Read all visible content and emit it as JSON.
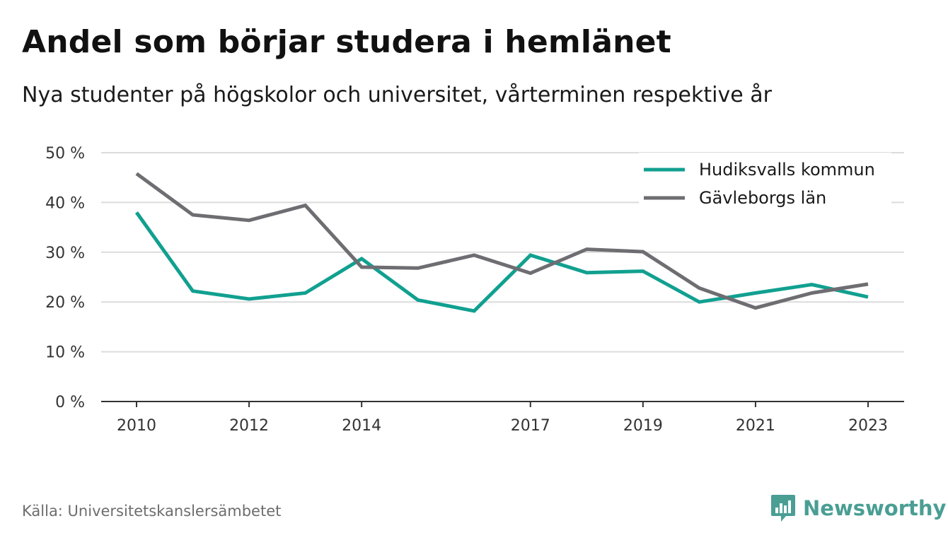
{
  "title": "Andel som börjar studera i hemlänet",
  "subtitle": "Nya studenter på högskolor och universitet, vårterminen respektive år",
  "source": "Källa: Universitetskanslersämbetet",
  "brand": {
    "name": "Newsworthy",
    "icon": "newsworthy-logo-icon",
    "color": "#4a9e94"
  },
  "chart_data": {
    "type": "line",
    "x": [
      2010,
      2011,
      2012,
      2013,
      2014,
      2015,
      2016,
      2017,
      2018,
      2019,
      2020,
      2021,
      2022,
      2023
    ],
    "series": [
      {
        "name": "Hudiksvalls kommun",
        "color": "#11a090",
        "values": [
          38,
          22.2,
          20.6,
          21.8,
          28.7,
          20.4,
          18.2,
          29.4,
          25.9,
          26.2,
          20.0,
          21.8,
          23.5,
          21.0
        ]
      },
      {
        "name": "Gävleborgs län",
        "color": "#6e6d72",
        "values": [
          45.8,
          37.5,
          36.4,
          39.4,
          27.0,
          26.8,
          29.4,
          25.8,
          30.6,
          30.1,
          22.8,
          18.8,
          21.8,
          23.6
        ]
      }
    ],
    "xticks": [
      "2010",
      "2012",
      "2014",
      "2017",
      "2019",
      "2021",
      "2023"
    ],
    "yticks": [
      "0 %",
      "10 %",
      "20 %",
      "30 %",
      "40 %",
      "50 %"
    ],
    "ylim": [
      0,
      50
    ],
    "xlim": [
      2010,
      2023
    ],
    "grid": true,
    "legend_position": "top-right"
  }
}
